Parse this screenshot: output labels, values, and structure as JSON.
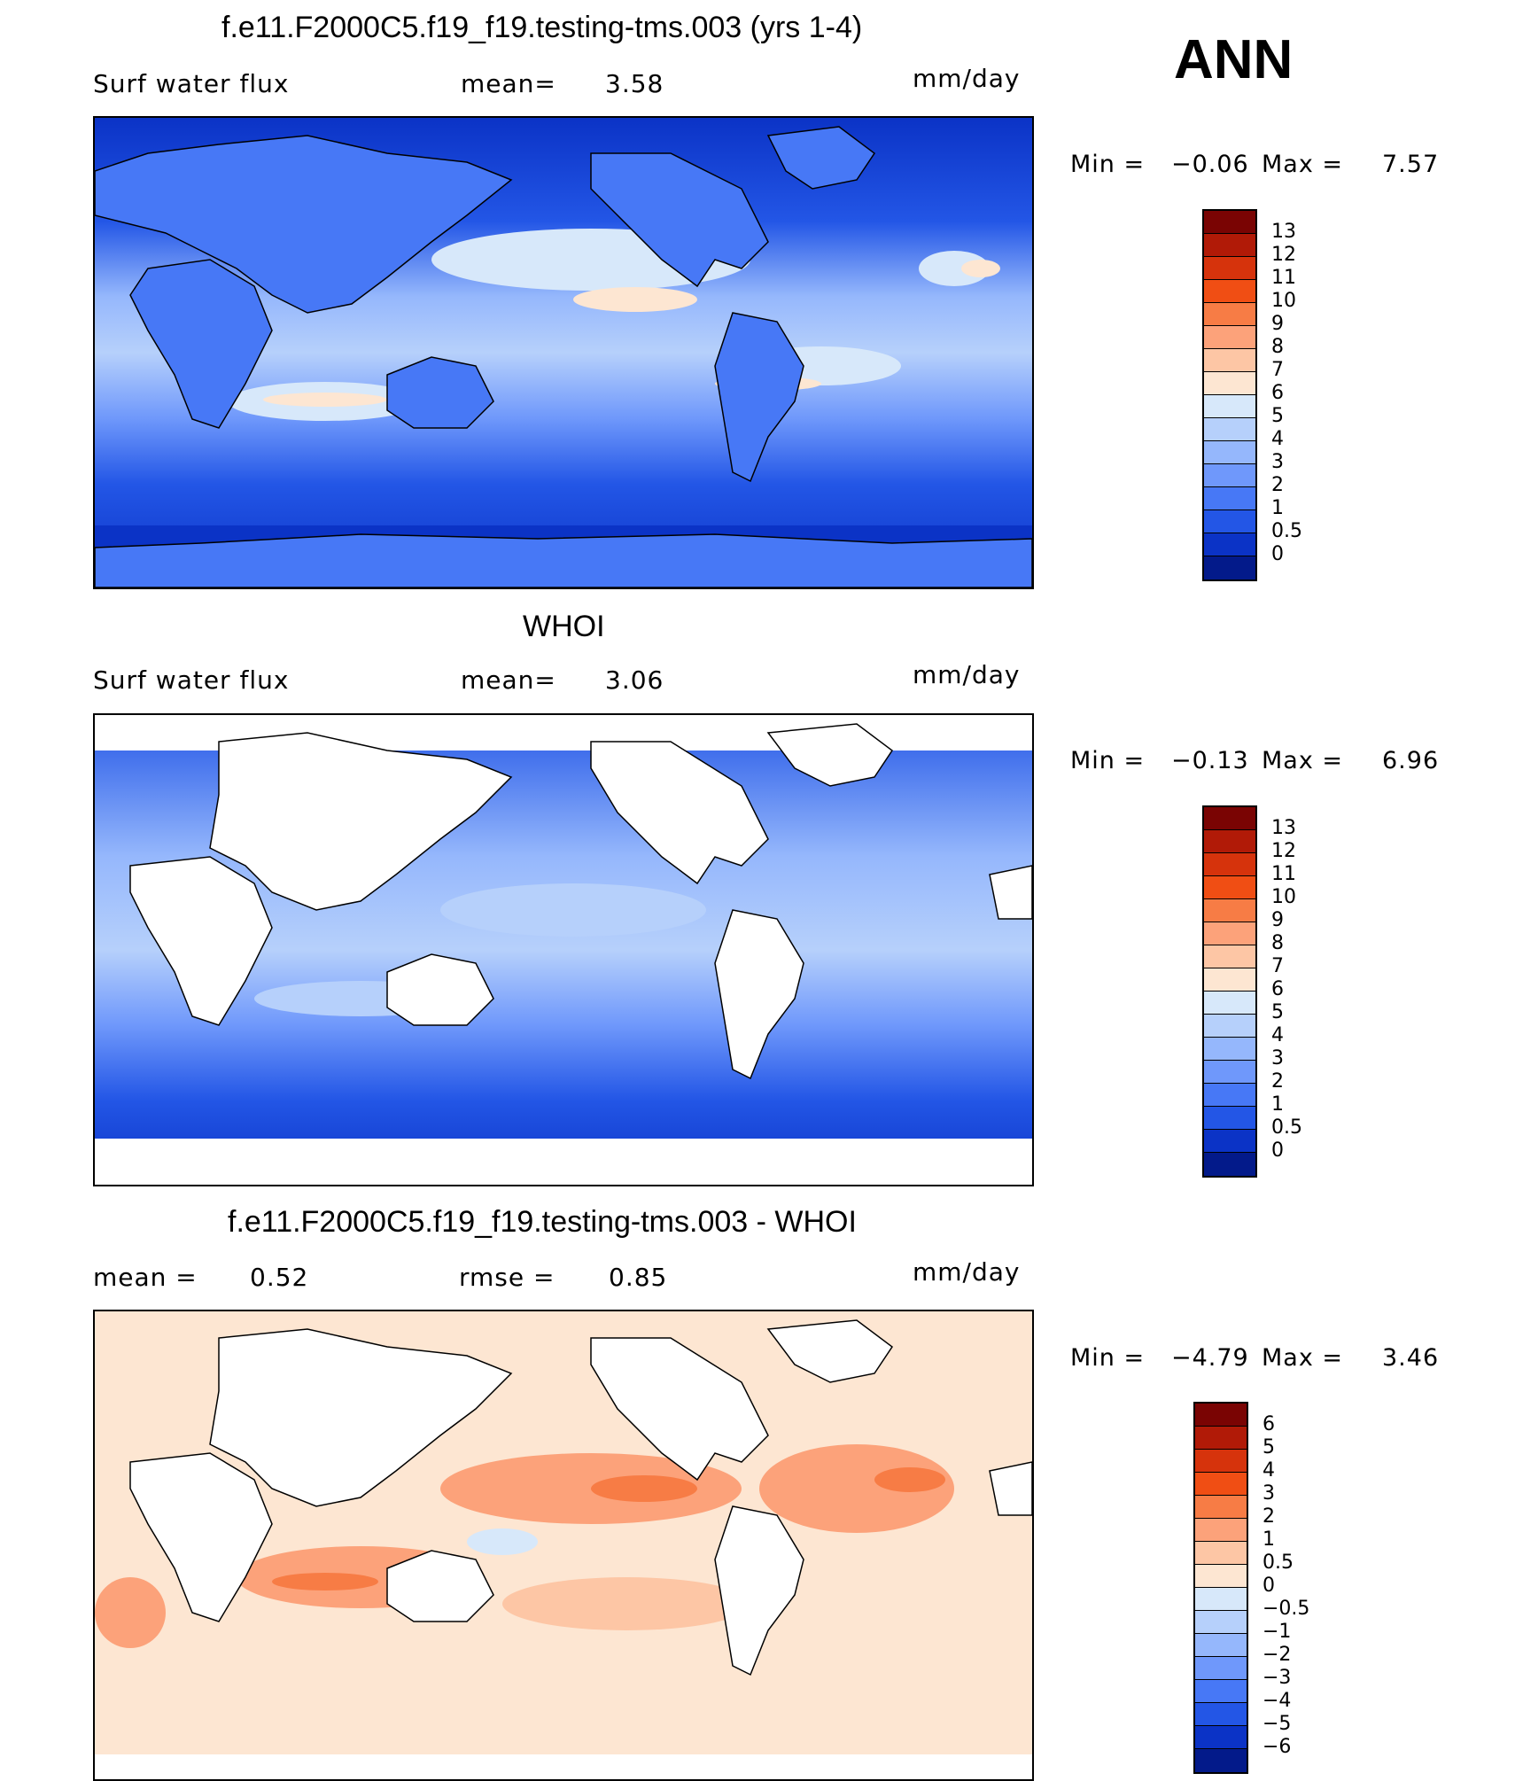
{
  "season": "ANN",
  "units": "mm/day",
  "panels": [
    {
      "id": "model",
      "title": "f.e11.F2000C5.f19_f19.testing-tms.003 (yrs 1-4)",
      "left_label": "Surf water flux",
      "stat_label": "mean=",
      "stat_value": "3.58",
      "units": "mm/day",
      "min_label": "Min =",
      "min_value": "−0.06",
      "max_label": "Max =",
      "max_value": "7.57",
      "colorbar": {
        "labels": [
          "13",
          "12",
          "11",
          "10",
          "9",
          "8",
          "7",
          "6",
          "5",
          "4",
          "3",
          "2",
          "1",
          "0.5",
          "0"
        ],
        "colors": [
          "#7a0403",
          "#b11a07",
          "#d6330c",
          "#f04e14",
          "#f77c45",
          "#fca27a",
          "#fdc6a5",
          "#fde6d2",
          "#d7e8fa",
          "#b6d0fb",
          "#95b7fc",
          "#6f98fb",
          "#4778f6",
          "#2356e6",
          "#0b33c6",
          "#031a8a"
        ]
      }
    },
    {
      "id": "obs",
      "title": "WHOI",
      "left_label": "Surf water flux",
      "stat_label": "mean=",
      "stat_value": "3.06",
      "units": "mm/day",
      "min_label": "Min =",
      "min_value": "−0.13",
      "max_label": "Max =",
      "max_value": "6.96",
      "colorbar": {
        "labels": [
          "13",
          "12",
          "11",
          "10",
          "9",
          "8",
          "7",
          "6",
          "5",
          "4",
          "3",
          "2",
          "1",
          "0.5",
          "0"
        ],
        "colors": [
          "#7a0403",
          "#b11a07",
          "#d6330c",
          "#f04e14",
          "#f77c45",
          "#fca27a",
          "#fdc6a5",
          "#fde6d2",
          "#d7e8fa",
          "#b6d0fb",
          "#95b7fc",
          "#6f98fb",
          "#4778f6",
          "#2356e6",
          "#0b33c6",
          "#031a8a"
        ]
      }
    },
    {
      "id": "diff",
      "title": "f.e11.F2000C5.f19_f19.testing-tms.003 - WHOI",
      "left_stat_label": "mean =",
      "left_stat_value": "0.52",
      "stat_label": "rmse =",
      "stat_value": "0.85",
      "units": "mm/day",
      "min_label": "Min =",
      "min_value": "−4.79",
      "max_label": "Max =",
      "max_value": "3.46",
      "colorbar": {
        "labels": [
          "6",
          "5",
          "4",
          "3",
          "2",
          "1",
          "0.5",
          "0",
          "−0.5",
          "−1",
          "−2",
          "−3",
          "−4",
          "−5",
          "−6"
        ],
        "colors": [
          "#7a0403",
          "#b11a07",
          "#d6330c",
          "#f04e14",
          "#f77c45",
          "#fca27a",
          "#fdc6a5",
          "#fde6d2",
          "#d7e8fa",
          "#b6d0fb",
          "#95b7fc",
          "#6f98fb",
          "#4778f6",
          "#2356e6",
          "#0b33c6",
          "#031a8a"
        ]
      }
    }
  ]
}
